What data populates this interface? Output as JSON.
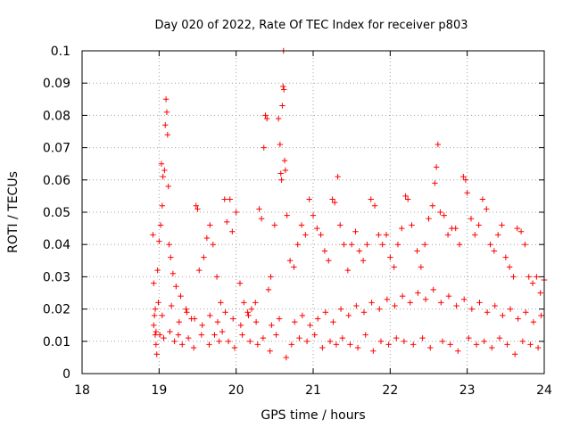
{
  "chart_data": {
    "type": "scatter",
    "title": "Day 020 of 2022, Rate Of TEC Index for receiver p803",
    "xlabel": "GPS time / hours",
    "ylabel": "ROTI / TECUs",
    "xlim": [
      18,
      24
    ],
    "ylim": [
      0,
      0.1
    ],
    "xticks": [
      "18",
      "19",
      "20",
      "21",
      "22",
      "23",
      "24"
    ],
    "yticks": [
      "0",
      "0.01",
      "0.02",
      "0.03",
      "0.04",
      "0.05",
      "0.06",
      "0.07",
      "0.08",
      "0.09",
      "0.1"
    ],
    "grid": true,
    "marker": "plus",
    "color": "#ff0000",
    "series": [
      {
        "points": [
          [
            18.92,
            0.043
          ],
          [
            18.93,
            0.028
          ],
          [
            18.94,
            0.018
          ],
          [
            18.95,
            0.012
          ],
          [
            18.96,
            0.009
          ],
          [
            18.97,
            0.006
          ],
          [
            18.98,
            0.032
          ],
          [
            18.99,
            0.022
          ],
          [
            19.0,
            0.041
          ],
          [
            19.02,
            0.046
          ],
          [
            19.03,
            0.065
          ],
          [
            19.04,
            0.052
          ],
          [
            19.05,
            0.061
          ],
          [
            19.07,
            0.063
          ],
          [
            19.08,
            0.077
          ],
          [
            19.09,
            0.085
          ],
          [
            19.1,
            0.081
          ],
          [
            19.11,
            0.074
          ],
          [
            19.12,
            0.058
          ],
          [
            19.13,
            0.04
          ],
          [
            19.15,
            0.036
          ],
          [
            19.18,
            0.031
          ],
          [
            19.22,
            0.027
          ],
          [
            19.28,
            0.024
          ],
          [
            19.35,
            0.02
          ],
          [
            19.42,
            0.017
          ],
          [
            19.48,
            0.052
          ],
          [
            19.5,
            0.051
          ],
          [
            19.52,
            0.032
          ],
          [
            19.58,
            0.036
          ],
          [
            19.62,
            0.042
          ],
          [
            19.66,
            0.046
          ],
          [
            19.7,
            0.04
          ],
          [
            19.75,
            0.03
          ],
          [
            19.8,
            0.022
          ],
          [
            19.85,
            0.054
          ],
          [
            19.88,
            0.047
          ],
          [
            19.92,
            0.054
          ],
          [
            19.95,
            0.044
          ],
          [
            20.0,
            0.05
          ],
          [
            20.05,
            0.028
          ],
          [
            20.1,
            0.022
          ],
          [
            20.15,
            0.019
          ],
          [
            20.2,
            0.02
          ],
          [
            20.25,
            0.022
          ],
          [
            20.3,
            0.051
          ],
          [
            20.33,
            0.048
          ],
          [
            20.36,
            0.07
          ],
          [
            20.38,
            0.08
          ],
          [
            20.4,
            0.079
          ],
          [
            20.42,
            0.026
          ],
          [
            20.45,
            0.03
          ],
          [
            20.5,
            0.046
          ],
          [
            20.55,
            0.079
          ],
          [
            20.57,
            0.071
          ],
          [
            20.58,
            0.062
          ],
          [
            20.59,
            0.06
          ],
          [
            20.6,
            0.083
          ],
          [
            20.61,
            0.089
          ],
          [
            20.615,
            0.1
          ],
          [
            20.62,
            0.088
          ],
          [
            20.63,
            0.066
          ],
          [
            20.64,
            0.063
          ],
          [
            20.66,
            0.049
          ],
          [
            20.7,
            0.035
          ],
          [
            20.75,
            0.033
          ],
          [
            20.8,
            0.04
          ],
          [
            20.85,
            0.046
          ],
          [
            20.9,
            0.043
          ],
          [
            20.95,
            0.054
          ],
          [
            21.0,
            0.049
          ],
          [
            21.05,
            0.045
          ],
          [
            21.1,
            0.043
          ],
          [
            21.15,
            0.038
          ],
          [
            21.2,
            0.035
          ],
          [
            21.25,
            0.054
          ],
          [
            21.28,
            0.053
          ],
          [
            21.32,
            0.061
          ],
          [
            21.35,
            0.046
          ],
          [
            21.4,
            0.04
          ],
          [
            21.45,
            0.032
          ],
          [
            21.5,
            0.04
          ],
          [
            21.55,
            0.044
          ],
          [
            21.6,
            0.038
          ],
          [
            21.65,
            0.035
          ],
          [
            21.7,
            0.04
          ],
          [
            21.75,
            0.054
          ],
          [
            21.8,
            0.052
          ],
          [
            21.85,
            0.043
          ],
          [
            21.9,
            0.04
          ],
          [
            21.95,
            0.043
          ],
          [
            22.0,
            0.036
          ],
          [
            22.05,
            0.033
          ],
          [
            22.1,
            0.04
          ],
          [
            22.15,
            0.045
          ],
          [
            22.2,
            0.055
          ],
          [
            22.23,
            0.054
          ],
          [
            22.28,
            0.046
          ],
          [
            22.35,
            0.038
          ],
          [
            22.4,
            0.033
          ],
          [
            22.45,
            0.04
          ],
          [
            22.5,
            0.048
          ],
          [
            22.55,
            0.052
          ],
          [
            22.58,
            0.059
          ],
          [
            22.6,
            0.064
          ],
          [
            22.62,
            0.071
          ],
          [
            22.65,
            0.05
          ],
          [
            22.7,
            0.049
          ],
          [
            22.75,
            0.043
          ],
          [
            22.8,
            0.045
          ],
          [
            22.85,
            0.045
          ],
          [
            22.9,
            0.04
          ],
          [
            22.95,
            0.061
          ],
          [
            22.98,
            0.06
          ],
          [
            23.0,
            0.056
          ],
          [
            23.05,
            0.048
          ],
          [
            23.1,
            0.043
          ],
          [
            23.15,
            0.046
          ],
          [
            23.2,
            0.054
          ],
          [
            23.25,
            0.051
          ],
          [
            23.3,
            0.04
          ],
          [
            23.35,
            0.038
          ],
          [
            23.4,
            0.043
          ],
          [
            23.45,
            0.046
          ],
          [
            23.5,
            0.036
          ],
          [
            23.55,
            0.033
          ],
          [
            23.6,
            0.03
          ],
          [
            23.65,
            0.045
          ],
          [
            23.7,
            0.044
          ],
          [
            23.75,
            0.04
          ],
          [
            23.8,
            0.03
          ],
          [
            23.85,
            0.028
          ],
          [
            23.9,
            0.03
          ],
          [
            23.95,
            0.025
          ],
          [
            24.0,
            0.029
          ],
          [
            18.93,
            0.015
          ],
          [
            18.96,
            0.013
          ],
          [
            19.01,
            0.012
          ],
          [
            19.06,
            0.011
          ],
          [
            19.14,
            0.013
          ],
          [
            19.2,
            0.01
          ],
          [
            19.25,
            0.012
          ],
          [
            19.3,
            0.009
          ],
          [
            19.38,
            0.011
          ],
          [
            19.45,
            0.008
          ],
          [
            19.55,
            0.012
          ],
          [
            19.65,
            0.009
          ],
          [
            19.72,
            0.012
          ],
          [
            19.78,
            0.01
          ],
          [
            19.82,
            0.013
          ],
          [
            19.9,
            0.01
          ],
          [
            19.98,
            0.008
          ],
          [
            20.08,
            0.012
          ],
          [
            20.18,
            0.01
          ],
          [
            20.28,
            0.009
          ],
          [
            20.35,
            0.011
          ],
          [
            20.44,
            0.007
          ],
          [
            20.52,
            0.012
          ],
          [
            20.65,
            0.005
          ],
          [
            20.72,
            0.009
          ],
          [
            20.82,
            0.011
          ],
          [
            20.92,
            0.01
          ],
          [
            21.02,
            0.012
          ],
          [
            21.12,
            0.008
          ],
          [
            21.22,
            0.01
          ],
          [
            21.3,
            0.009
          ],
          [
            21.38,
            0.011
          ],
          [
            21.48,
            0.009
          ],
          [
            21.58,
            0.008
          ],
          [
            21.68,
            0.012
          ],
          [
            21.78,
            0.007
          ],
          [
            21.88,
            0.01
          ],
          [
            21.98,
            0.009
          ],
          [
            22.08,
            0.011
          ],
          [
            22.18,
            0.01
          ],
          [
            22.3,
            0.009
          ],
          [
            22.42,
            0.011
          ],
          [
            22.52,
            0.008
          ],
          [
            22.68,
            0.01
          ],
          [
            22.78,
            0.009
          ],
          [
            22.88,
            0.007
          ],
          [
            23.02,
            0.011
          ],
          [
            23.12,
            0.009
          ],
          [
            23.22,
            0.01
          ],
          [
            23.32,
            0.008
          ],
          [
            23.42,
            0.011
          ],
          [
            23.52,
            0.009
          ],
          [
            23.62,
            0.006
          ],
          [
            23.72,
            0.01
          ],
          [
            23.82,
            0.009
          ],
          [
            23.92,
            0.008
          ],
          [
            18.95,
            0.02
          ],
          [
            19.04,
            0.018
          ],
          [
            19.16,
            0.021
          ],
          [
            19.26,
            0.016
          ],
          [
            19.36,
            0.019
          ],
          [
            19.46,
            0.017
          ],
          [
            19.56,
            0.015
          ],
          [
            19.66,
            0.018
          ],
          [
            19.76,
            0.016
          ],
          [
            19.86,
            0.019
          ],
          [
            19.96,
            0.017
          ],
          [
            20.06,
            0.015
          ],
          [
            20.16,
            0.018
          ],
          [
            20.26,
            0.016
          ],
          [
            20.46,
            0.015
          ],
          [
            20.56,
            0.017
          ],
          [
            20.76,
            0.016
          ],
          [
            20.86,
            0.018
          ],
          [
            20.96,
            0.015
          ],
          [
            21.06,
            0.017
          ],
          [
            21.16,
            0.019
          ],
          [
            21.26,
            0.016
          ],
          [
            21.36,
            0.02
          ],
          [
            21.46,
            0.018
          ],
          [
            21.56,
            0.021
          ],
          [
            21.66,
            0.019
          ],
          [
            21.76,
            0.022
          ],
          [
            21.86,
            0.02
          ],
          [
            21.96,
            0.023
          ],
          [
            22.06,
            0.021
          ],
          [
            22.16,
            0.024
          ],
          [
            22.26,
            0.022
          ],
          [
            22.36,
            0.025
          ],
          [
            22.46,
            0.023
          ],
          [
            22.56,
            0.026
          ],
          [
            22.66,
            0.022
          ],
          [
            22.76,
            0.024
          ],
          [
            22.86,
            0.021
          ],
          [
            22.96,
            0.023
          ],
          [
            23.06,
            0.02
          ],
          [
            23.16,
            0.022
          ],
          [
            23.26,
            0.019
          ],
          [
            23.36,
            0.021
          ],
          [
            23.46,
            0.018
          ],
          [
            23.56,
            0.02
          ],
          [
            23.66,
            0.017
          ],
          [
            23.76,
            0.019
          ],
          [
            23.86,
            0.016
          ],
          [
            23.96,
            0.018
          ]
        ]
      }
    ]
  }
}
